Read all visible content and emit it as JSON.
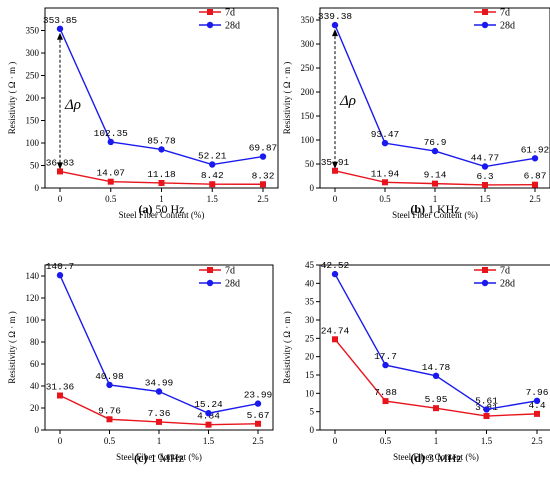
{
  "chart_data": [
    {
      "type": "line",
      "panel_label": "(a)",
      "caption": "50 Hz",
      "xlabel": "Steel Fiber Content  (%)",
      "ylabel": "Resistivity  ( Ω · m )",
      "categories": [
        "0",
        "0.5",
        "1",
        "1.5",
        "2.5"
      ],
      "ylim": [
        0,
        400
      ],
      "yticks": [
        0,
        50,
        100,
        150,
        200,
        250,
        300,
        350
      ],
      "annotation": "Δρ",
      "legend_position": "top-right",
      "series": [
        {
          "name": "7d",
          "color": "#e8141c",
          "marker": "square",
          "values": [
            36.83,
            14.07,
            11.18,
            8.42,
            8.32
          ],
          "labels": [
            "36.83",
            "14.07",
            "11.18",
            "8.42",
            "8.32"
          ]
        },
        {
          "name": "28d",
          "color": "#1a1aee",
          "marker": "circle",
          "values": [
            353.85,
            102.35,
            85.78,
            52.21,
            69.87
          ],
          "labels": [
            "353.85",
            "102.35",
            "85.78",
            "52.21",
            "69.87"
          ]
        }
      ]
    },
    {
      "type": "line",
      "panel_label": "(b)",
      "caption": "1 KHz",
      "xlabel": "Steel Fiber Content  (%)",
      "ylabel": "Resistivity  ( Ω · m )",
      "categories": [
        "0",
        "0.5",
        "1",
        "1.5",
        "2.5"
      ],
      "ylim": [
        0,
        375
      ],
      "yticks": [
        0,
        50,
        100,
        150,
        200,
        250,
        300,
        350
      ],
      "annotation": "Δρ",
      "legend_position": "top-right",
      "series": [
        {
          "name": "7d",
          "color": "#e8141c",
          "marker": "square",
          "values": [
            35.91,
            11.94,
            9.14,
            6.3,
            6.87
          ],
          "labels": [
            "35.91",
            "11.94",
            "9.14",
            "6.3",
            "6.87"
          ]
        },
        {
          "name": "28d",
          "color": "#1a1aee",
          "marker": "circle",
          "values": [
            339.38,
            93.47,
            76.9,
            44.77,
            61.92
          ],
          "labels": [
            "339.38",
            "93.47",
            "76.9",
            "44.77",
            "61.92"
          ]
        }
      ]
    },
    {
      "type": "line",
      "panel_label": "(c)",
      "caption": "1 MHz",
      "xlabel": "Steel Fiber Content  (%)",
      "ylabel": "Resistivity  ( Ω · m )",
      "categories": [
        "0",
        "0.5",
        "1",
        "1.5",
        "2.5"
      ],
      "ylim": [
        0,
        150
      ],
      "yticks": [
        0,
        20,
        40,
        60,
        80,
        100,
        120,
        140
      ],
      "annotation": "",
      "legend_position": "top-right",
      "series": [
        {
          "name": "7d",
          "color": "#e8141c",
          "marker": "square",
          "values": [
            31.36,
            9.76,
            7.36,
            4.84,
            5.67
          ],
          "labels": [
            "31.36",
            "9.76",
            "7.36",
            "4.84",
            "5.67"
          ]
        },
        {
          "name": "28d",
          "color": "#1a1aee",
          "marker": "circle",
          "values": [
            140.7,
            40.98,
            34.99,
            15.24,
            23.99
          ],
          "labels": [
            "140.7",
            "40.98",
            "34.99",
            "15.24",
            "23.99"
          ]
        }
      ]
    },
    {
      "type": "line",
      "panel_label": "(d)",
      "caption": "3 MHz",
      "xlabel": "Steel Fiber Content  (%)",
      "ylabel": "Resistivity  ( Ω · m )",
      "categories": [
        "0",
        "0.5",
        "1",
        "1.5",
        "2.5"
      ],
      "ylim": [
        0,
        45
      ],
      "yticks": [
        0,
        5,
        10,
        15,
        20,
        25,
        30,
        35,
        40,
        45
      ],
      "annotation": "",
      "legend_position": "top-right",
      "series": [
        {
          "name": "7d",
          "color": "#e8141c",
          "marker": "square",
          "values": [
            24.74,
            7.88,
            5.95,
            3.81,
            4.4
          ],
          "labels": [
            "24.74",
            "7.88",
            "5.95",
            "3.81",
            "4.4"
          ]
        },
        {
          "name": "28d",
          "color": "#1a1aee",
          "marker": "circle",
          "values": [
            42.52,
            17.7,
            14.78,
            5.61,
            7.96
          ],
          "labels": [
            "42.52",
            "17.7",
            "14.78",
            "5.61",
            "7.96"
          ]
        }
      ]
    }
  ]
}
